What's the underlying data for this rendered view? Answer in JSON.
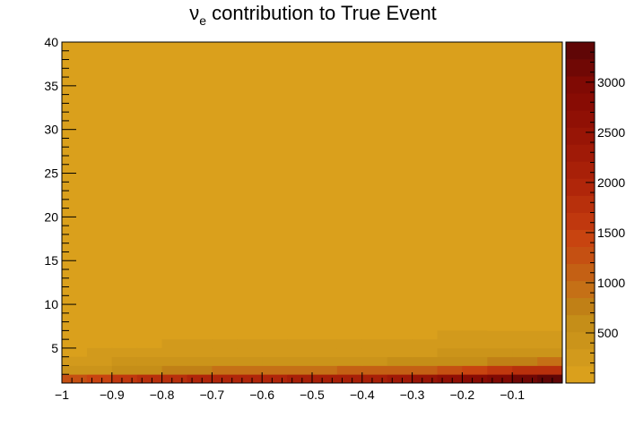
{
  "chart_data": {
    "type": "heatmap",
    "title": {
      "symbol": "ν",
      "subscript": "e",
      "rest": " contribution to True Event"
    },
    "xlabel": "",
    "ylabel": "",
    "xlim": [
      -1.0,
      0.0
    ],
    "ylim": [
      1,
      40
    ],
    "x_ticks": [
      -1,
      -0.9,
      -0.8,
      -0.7,
      -0.6,
      -0.5,
      -0.4,
      -0.3,
      -0.2,
      -0.1
    ],
    "x_tick_labels": [
      "−1",
      "−0.9",
      "−0.8",
      "−0.7",
      "−0.6",
      "−0.5",
      "−0.4",
      "−0.3",
      "−0.2",
      "−0.1"
    ],
    "y_ticks": [
      5,
      10,
      15,
      20,
      25,
      30,
      35,
      40
    ],
    "y_tick_labels": [
      "5",
      "10",
      "15",
      "20",
      "25",
      "30",
      "35",
      "40"
    ],
    "x_bins": 20,
    "y_bins": 39,
    "background_value": 50,
    "cells": [
      {
        "x": [
          -1.0,
          -0.95
        ],
        "y": [
          1,
          2
        ],
        "value": 1300
      },
      {
        "x": [
          -0.95,
          -0.9
        ],
        "y": [
          1,
          2
        ],
        "value": 1450
      },
      {
        "x": [
          -0.9,
          -0.85
        ],
        "y": [
          1,
          2
        ],
        "value": 1600
      },
      {
        "x": [
          -0.85,
          -0.8
        ],
        "y": [
          1,
          2
        ],
        "value": 1750
      },
      {
        "x": [
          -0.8,
          -0.75
        ],
        "y": [
          1,
          2
        ],
        "value": 1850
      },
      {
        "x": [
          -0.75,
          -0.7
        ],
        "y": [
          1,
          2
        ],
        "value": 1900
      },
      {
        "x": [
          -0.7,
          -0.65
        ],
        "y": [
          1,
          2
        ],
        "value": 1950
      },
      {
        "x": [
          -0.65,
          -0.6
        ],
        "y": [
          1,
          2
        ],
        "value": 2000
      },
      {
        "x": [
          -0.6,
          -0.55
        ],
        "y": [
          1,
          2
        ],
        "value": 2000
      },
      {
        "x": [
          -0.55,
          -0.5
        ],
        "y": [
          1,
          2
        ],
        "value": 2050
      },
      {
        "x": [
          -0.5,
          -0.45
        ],
        "y": [
          1,
          2
        ],
        "value": 2100
      },
      {
        "x": [
          -0.45,
          -0.4
        ],
        "y": [
          1,
          2
        ],
        "value": 2150
      },
      {
        "x": [
          -0.4,
          -0.35
        ],
        "y": [
          1,
          2
        ],
        "value": 2200
      },
      {
        "x": [
          -0.35,
          -0.3
        ],
        "y": [
          1,
          2
        ],
        "value": 2300
      },
      {
        "x": [
          -0.3,
          -0.25
        ],
        "y": [
          1,
          2
        ],
        "value": 2450
      },
      {
        "x": [
          -0.25,
          -0.2
        ],
        "y": [
          1,
          2
        ],
        "value": 2600
      },
      {
        "x": [
          -0.2,
          -0.15
        ],
        "y": [
          1,
          2
        ],
        "value": 2800
      },
      {
        "x": [
          -0.15,
          -0.1
        ],
        "y": [
          1,
          2
        ],
        "value": 3000
      },
      {
        "x": [
          -0.1,
          -0.05
        ],
        "y": [
          1,
          2
        ],
        "value": 3200
      },
      {
        "x": [
          -0.05,
          0.0
        ],
        "y": [
          1,
          2
        ],
        "value": 3350
      },
      {
        "x": [
          -1.0,
          -0.95
        ],
        "y": [
          2,
          3
        ],
        "value": 400
      },
      {
        "x": [
          -0.95,
          -0.9
        ],
        "y": [
          2,
          3
        ],
        "value": 450
      },
      {
        "x": [
          -0.9,
          -0.85
        ],
        "y": [
          2,
          3
        ],
        "value": 550
      },
      {
        "x": [
          -0.85,
          -0.8
        ],
        "y": [
          2,
          3
        ],
        "value": 600
      },
      {
        "x": [
          -0.8,
          -0.75
        ],
        "y": [
          2,
          3
        ],
        "value": 700
      },
      {
        "x": [
          -0.75,
          -0.7
        ],
        "y": [
          2,
          3
        ],
        "value": 800
      },
      {
        "x": [
          -0.7,
          -0.65
        ],
        "y": [
          2,
          3
        ],
        "value": 900
      },
      {
        "x": [
          -0.65,
          -0.6
        ],
        "y": [
          2,
          3
        ],
        "value": 950
      },
      {
        "x": [
          -0.6,
          -0.55
        ],
        "y": [
          2,
          3
        ],
        "value": 950
      },
      {
        "x": [
          -0.55,
          -0.5
        ],
        "y": [
          2,
          3
        ],
        "value": 1000
      },
      {
        "x": [
          -0.5,
          -0.45
        ],
        "y": [
          2,
          3
        ],
        "value": 1000
      },
      {
        "x": [
          -0.45,
          -0.4
        ],
        "y": [
          2,
          3
        ],
        "value": 1050
      },
      {
        "x": [
          -0.4,
          -0.35
        ],
        "y": [
          2,
          3
        ],
        "value": 1050
      },
      {
        "x": [
          -0.35,
          -0.3
        ],
        "y": [
          2,
          3
        ],
        "value": 1100
      },
      {
        "x": [
          -0.3,
          -0.25
        ],
        "y": [
          2,
          3
        ],
        "value": 1150
      },
      {
        "x": [
          -0.25,
          -0.2
        ],
        "y": [
          2,
          3
        ],
        "value": 1250
      },
      {
        "x": [
          -0.2,
          -0.15
        ],
        "y": [
          2,
          3
        ],
        "value": 1400
      },
      {
        "x": [
          -0.15,
          -0.1
        ],
        "y": [
          2,
          3
        ],
        "value": 1550
      },
      {
        "x": [
          -0.1,
          -0.05
        ],
        "y": [
          2,
          3
        ],
        "value": 1700
      },
      {
        "x": [
          -0.05,
          0.0
        ],
        "y": [
          2,
          3
        ],
        "value": 1850
      },
      {
        "x": [
          -1.0,
          -0.95
        ],
        "y": [
          3,
          4
        ],
        "value": 250
      },
      {
        "x": [
          -0.95,
          -0.9
        ],
        "y": [
          3,
          4
        ],
        "value": 250
      },
      {
        "x": [
          -0.9,
          -0.85
        ],
        "y": [
          3,
          4
        ],
        "value": 350
      },
      {
        "x": [
          -0.85,
          -0.8
        ],
        "y": [
          3,
          4
        ],
        "value": 350
      },
      {
        "x": [
          -0.8,
          -0.75
        ],
        "y": [
          3,
          4
        ],
        "value": 450
      },
      {
        "x": [
          -0.75,
          -0.7
        ],
        "y": [
          3,
          4
        ],
        "value": 450
      },
      {
        "x": [
          -0.7,
          -0.65
        ],
        "y": [
          3,
          4
        ],
        "value": 450
      },
      {
        "x": [
          -0.65,
          -0.6
        ],
        "y": [
          3,
          4
        ],
        "value": 450
      },
      {
        "x": [
          -0.6,
          -0.55
        ],
        "y": [
          3,
          4
        ],
        "value": 450
      },
      {
        "x": [
          -0.55,
          -0.5
        ],
        "y": [
          3,
          4
        ],
        "value": 450
      },
      {
        "x": [
          -0.5,
          -0.45
        ],
        "y": [
          3,
          4
        ],
        "value": 500
      },
      {
        "x": [
          -0.45,
          -0.4
        ],
        "y": [
          3,
          4
        ],
        "value": 500
      },
      {
        "x": [
          -0.4,
          -0.35
        ],
        "y": [
          3,
          4
        ],
        "value": 500
      },
      {
        "x": [
          -0.35,
          -0.3
        ],
        "y": [
          3,
          4
        ],
        "value": 550
      },
      {
        "x": [
          -0.3,
          -0.25
        ],
        "y": [
          3,
          4
        ],
        "value": 550
      },
      {
        "x": [
          -0.25,
          -0.2
        ],
        "y": [
          3,
          4
        ],
        "value": 600
      },
      {
        "x": [
          -0.2,
          -0.15
        ],
        "y": [
          3,
          4
        ],
        "value": 650
      },
      {
        "x": [
          -0.15,
          -0.1
        ],
        "y": [
          3,
          4
        ],
        "value": 700
      },
      {
        "x": [
          -0.1,
          -0.05
        ],
        "y": [
          3,
          4
        ],
        "value": 800
      },
      {
        "x": [
          -0.05,
          0.0
        ],
        "y": [
          3,
          4
        ],
        "value": 900
      },
      {
        "x": [
          -0.95,
          -0.9
        ],
        "y": [
          4,
          5
        ],
        "value": 200
      },
      {
        "x": [
          -0.9,
          -0.85
        ],
        "y": [
          4,
          5
        ],
        "value": 250
      },
      {
        "x": [
          -0.85,
          -0.8
        ],
        "y": [
          4,
          5
        ],
        "value": 250
      },
      {
        "x": [
          -0.8,
          -0.75
        ],
        "y": [
          4,
          5
        ],
        "value": 250
      },
      {
        "x": [
          -0.75,
          -0.7
        ],
        "y": [
          4,
          5
        ],
        "value": 250
      },
      {
        "x": [
          -0.7,
          -0.65
        ],
        "y": [
          4,
          5
        ],
        "value": 250
      },
      {
        "x": [
          -0.65,
          -0.6
        ],
        "y": [
          4,
          5
        ],
        "value": 250
      },
      {
        "x": [
          -0.6,
          -0.55
        ],
        "y": [
          4,
          5
        ],
        "value": 250
      },
      {
        "x": [
          -0.55,
          -0.5
        ],
        "y": [
          4,
          5
        ],
        "value": 250
      },
      {
        "x": [
          -0.5,
          -0.45
        ],
        "y": [
          4,
          5
        ],
        "value": 250
      },
      {
        "x": [
          -0.45,
          -0.4
        ],
        "y": [
          4,
          5
        ],
        "value": 250
      },
      {
        "x": [
          -0.4,
          -0.35
        ],
        "y": [
          4,
          5
        ],
        "value": 250
      },
      {
        "x": [
          -0.35,
          -0.3
        ],
        "y": [
          4,
          5
        ],
        "value": 250
      },
      {
        "x": [
          -0.3,
          -0.25
        ],
        "y": [
          4,
          5
        ],
        "value": 300
      },
      {
        "x": [
          -0.25,
          -0.2
        ],
        "y": [
          4,
          5
        ],
        "value": 350
      },
      {
        "x": [
          -0.2,
          -0.15
        ],
        "y": [
          4,
          5
        ],
        "value": 350
      },
      {
        "x": [
          -0.15,
          -0.1
        ],
        "y": [
          4,
          5
        ],
        "value": 400
      },
      {
        "x": [
          -0.1,
          -0.05
        ],
        "y": [
          4,
          5
        ],
        "value": 450
      },
      {
        "x": [
          -0.05,
          0.0
        ],
        "y": [
          4,
          5
        ],
        "value": 450
      },
      {
        "x": [
          -0.8,
          -0.75
        ],
        "y": [
          5,
          6
        ],
        "value": 200
      },
      {
        "x": [
          -0.75,
          -0.7
        ],
        "y": [
          5,
          6
        ],
        "value": 200
      },
      {
        "x": [
          -0.7,
          -0.65
        ],
        "y": [
          5,
          6
        ],
        "value": 200
      },
      {
        "x": [
          -0.65,
          -0.6
        ],
        "y": [
          5,
          6
        ],
        "value": 200
      },
      {
        "x": [
          -0.6,
          -0.55
        ],
        "y": [
          5,
          6
        ],
        "value": 200
      },
      {
        "x": [
          -0.55,
          -0.5
        ],
        "y": [
          5,
          6
        ],
        "value": 200
      },
      {
        "x": [
          -0.5,
          -0.45
        ],
        "y": [
          5,
          6
        ],
        "value": 200
      },
      {
        "x": [
          -0.45,
          -0.4
        ],
        "y": [
          5,
          6
        ],
        "value": 200
      },
      {
        "x": [
          -0.4,
          -0.35
        ],
        "y": [
          5,
          6
        ],
        "value": 200
      },
      {
        "x": [
          -0.35,
          -0.3
        ],
        "y": [
          5,
          6
        ],
        "value": 200
      },
      {
        "x": [
          -0.3,
          -0.25
        ],
        "y": [
          5,
          6
        ],
        "value": 200
      },
      {
        "x": [
          -0.25,
          -0.2
        ],
        "y": [
          5,
          6
        ],
        "value": 200
      },
      {
        "x": [
          -0.2,
          -0.15
        ],
        "y": [
          5,
          6
        ],
        "value": 250
      },
      {
        "x": [
          -0.15,
          -0.1
        ],
        "y": [
          5,
          6
        ],
        "value": 250
      },
      {
        "x": [
          -0.1,
          -0.05
        ],
        "y": [
          5,
          6
        ],
        "value": 300
      },
      {
        "x": [
          -0.05,
          0.0
        ],
        "y": [
          5,
          6
        ],
        "value": 300
      },
      {
        "x": [
          -0.25,
          -0.2
        ],
        "y": [
          6,
          7
        ],
        "value": 200
      },
      {
        "x": [
          -0.2,
          -0.15
        ],
        "y": [
          6,
          7
        ],
        "value": 200
      },
      {
        "x": [
          -0.15,
          -0.1
        ],
        "y": [
          6,
          7
        ],
        "value": 200
      },
      {
        "x": [
          -0.1,
          -0.05
        ],
        "y": [
          6,
          7
        ],
        "value": 200
      },
      {
        "x": [
          -0.05,
          0.0
        ],
        "y": [
          6,
          7
        ],
        "value": 200
      },
      {
        "x": [
          -0.15,
          -0.1
        ],
        "y": [
          7,
          8
        ],
        "value": 150
      },
      {
        "x": [
          -0.1,
          -0.05
        ],
        "y": [
          7,
          8
        ],
        "value": 150
      },
      {
        "x": [
          -0.05,
          0.0
        ],
        "y": [
          7,
          8
        ],
        "value": 150
      }
    ],
    "colorbar": {
      "zmin": 0,
      "zmax": 3400,
      "levels": 20,
      "tick_values": [
        500,
        1000,
        1500,
        2000,
        2500,
        3000
      ],
      "tick_labels": [
        "500",
        "1000",
        "1500",
        "2000",
        "2500",
        "3000"
      ],
      "colors": [
        "#DAA01C",
        "#D29A1C",
        "#CB941A",
        "#C58E18",
        "#C08016",
        "#C57016",
        "#C46014",
        "#C55012",
        "#C84410",
        "#C0380E",
        "#B8300C",
        "#B0260A",
        "#A82008",
        "#A01A07",
        "#981506",
        "#901005",
        "#880C04",
        "#800A04",
        "#700805",
        "#600606"
      ]
    },
    "grid": false,
    "legend": "none"
  }
}
